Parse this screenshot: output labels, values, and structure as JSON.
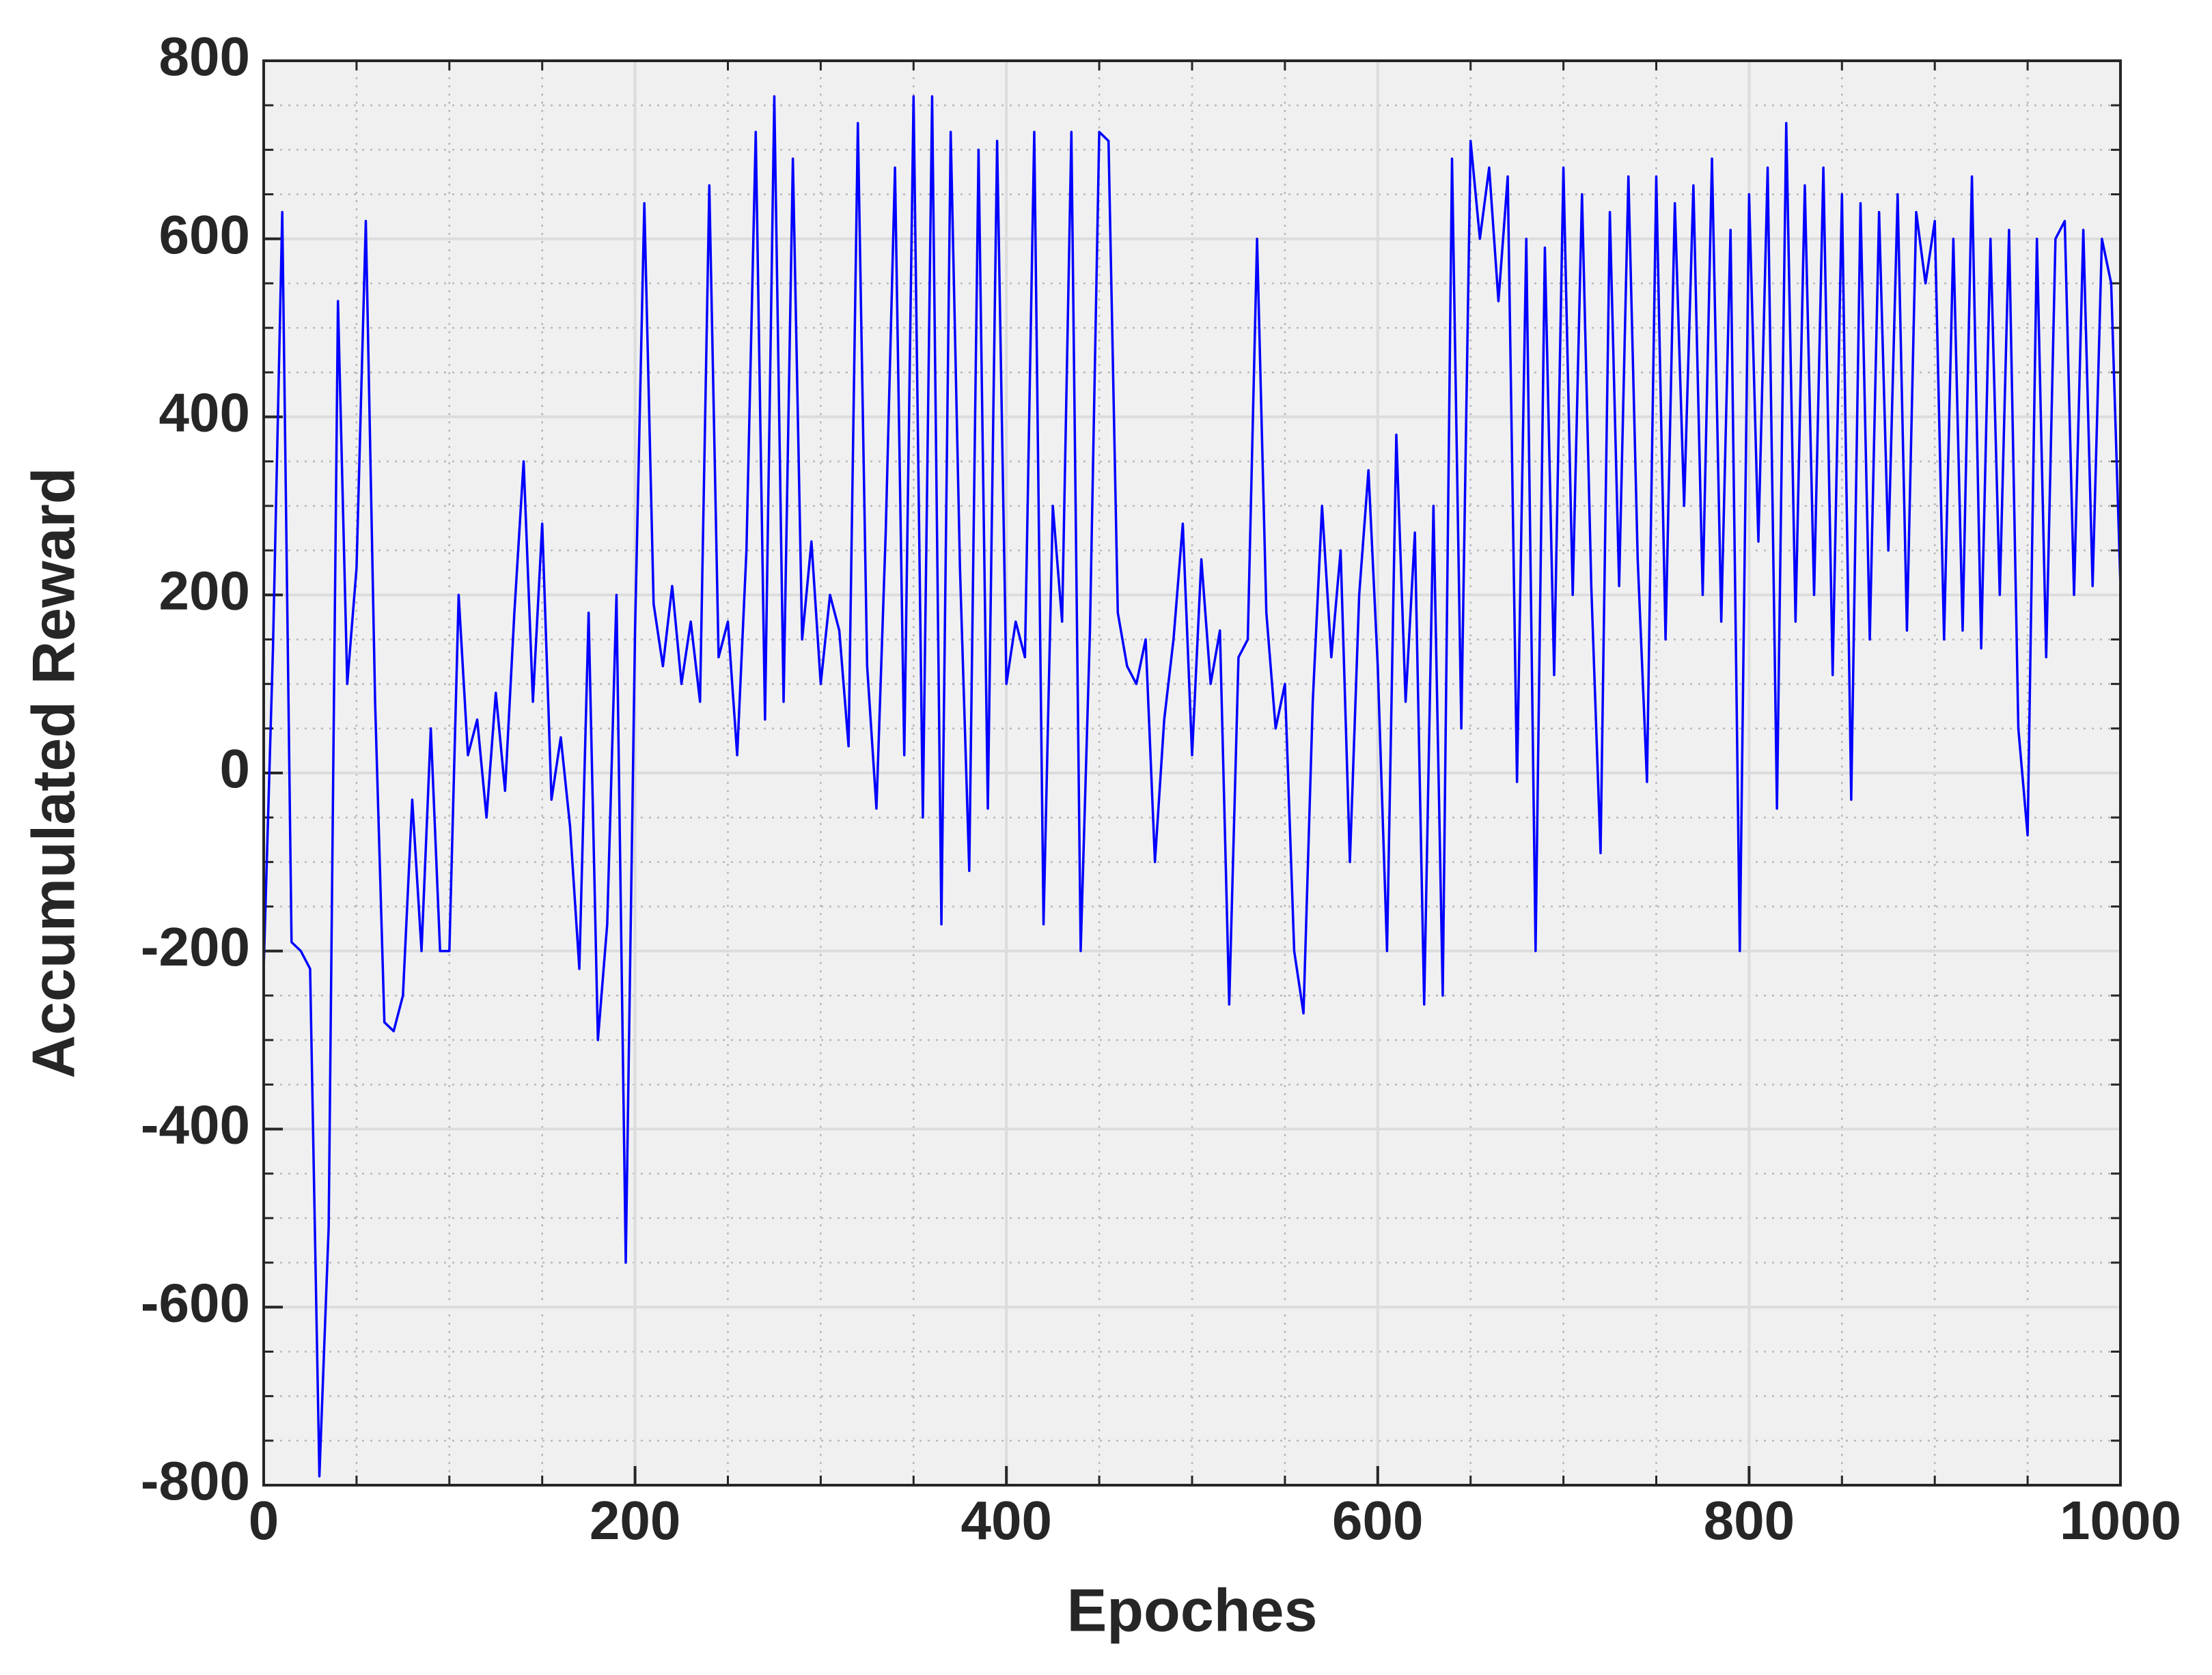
{
  "chart_data": {
    "type": "line",
    "xlabel": "Epoches",
    "ylabel": "Accumulated Reward",
    "x": [
      0,
      5,
      10,
      15,
      20,
      25,
      30,
      35,
      40,
      45,
      50,
      55,
      60,
      65,
      70,
      75,
      80,
      85,
      90,
      95,
      100,
      105,
      110,
      115,
      120,
      125,
      130,
      135,
      140,
      145,
      150,
      155,
      160,
      165,
      170,
      175,
      180,
      185,
      190,
      195,
      200,
      205,
      210,
      215,
      220,
      225,
      230,
      235,
      240,
      245,
      250,
      255,
      260,
      265,
      270,
      275,
      280,
      285,
      290,
      295,
      300,
      305,
      310,
      315,
      320,
      325,
      330,
      335,
      340,
      345,
      350,
      355,
      360,
      365,
      370,
      375,
      380,
      385,
      390,
      395,
      400,
      405,
      410,
      415,
      420,
      425,
      430,
      435,
      440,
      445,
      450,
      455,
      460,
      465,
      470,
      475,
      480,
      485,
      490,
      495,
      500,
      505,
      510,
      515,
      520,
      525,
      530,
      535,
      540,
      545,
      550,
      555,
      560,
      565,
      570,
      575,
      580,
      585,
      590,
      595,
      600,
      605,
      610,
      615,
      620,
      625,
      630,
      635,
      640,
      645,
      650,
      655,
      660,
      665,
      670,
      675,
      680,
      685,
      690,
      695,
      700,
      705,
      710,
      715,
      720,
      725,
      730,
      735,
      740,
      745,
      750,
      755,
      760,
      765,
      770,
      775,
      780,
      785,
      790,
      795,
      800,
      805,
      810,
      815,
      820,
      825,
      830,
      835,
      840,
      845,
      850,
      855,
      860,
      865,
      870,
      875,
      880,
      885,
      890,
      895,
      900,
      905,
      910,
      915,
      920,
      925,
      930,
      935,
      940,
      945,
      950,
      955,
      960,
      965,
      970,
      975,
      980,
      985,
      990,
      995,
      1000
    ],
    "values": [
      -220,
      140,
      630,
      -190,
      -200,
      -220,
      -790,
      -510,
      530,
      100,
      230,
      620,
      80,
      -280,
      -290,
      -250,
      -30,
      -200,
      50,
      -200,
      -200,
      200,
      20,
      60,
      -50,
      90,
      -20,
      180,
      350,
      80,
      280,
      -30,
      40,
      -60,
      -220,
      180,
      -300,
      -170,
      200,
      -550,
      160,
      640,
      190,
      120,
      210,
      100,
      170,
      80,
      660,
      130,
      170,
      20,
      250,
      720,
      60,
      760,
      80,
      690,
      150,
      260,
      100,
      200,
      160,
      30,
      730,
      120,
      -40,
      270,
      680,
      20,
      760,
      -50,
      760,
      -170,
      720,
      230,
      -110,
      700,
      -40,
      710,
      100,
      170,
      130,
      720,
      -170,
      300,
      170,
      720,
      -200,
      160,
      720,
      710,
      180,
      120,
      100,
      150,
      -100,
      60,
      150,
      280,
      20,
      240,
      100,
      160,
      -260,
      130,
      150,
      600,
      180,
      50,
      100,
      -200,
      -270,
      80,
      300,
      130,
      250,
      -100,
      200,
      340,
      120,
      -200,
      380,
      80,
      270,
      -260,
      300,
      -250,
      690,
      50,
      710,
      600,
      680,
      530,
      670,
      -10,
      600,
      -200,
      590,
      110,
      680,
      200,
      650,
      210,
      -90,
      630,
      210,
      670,
      240,
      -10,
      670,
      150,
      640,
      300,
      660,
      200,
      690,
      170,
      610,
      -200,
      650,
      260,
      680,
      -40,
      730,
      170,
      660,
      200,
      680,
      110,
      650,
      -30,
      640,
      150,
      630,
      250,
      650,
      160,
      630,
      550,
      620,
      150,
      600,
      160,
      670,
      140,
      600,
      200,
      610,
      50,
      -70,
      600,
      130,
      600,
      620,
      200,
      610,
      210,
      600,
      550,
      210
    ],
    "color": "#0000ff",
    "xlim": [
      0,
      1000
    ],
    "xticks": [
      0,
      200,
      400,
      600,
      800,
      1000
    ],
    "ylim": [
      -800,
      800
    ],
    "yticks": [
      -800,
      -600,
      -400,
      -200,
      0,
      200,
      400,
      600,
      800
    ],
    "grid": true,
    "minor_grid": true
  }
}
